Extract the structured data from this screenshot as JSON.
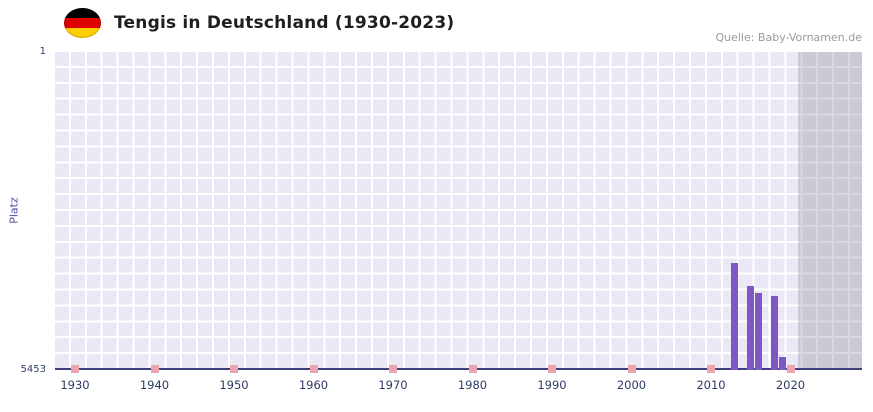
{
  "header": {
    "title": "Tengis in Deutschland (1930-2023)",
    "source": "Quelle: Baby-Vornamen.de",
    "flag_icon": "german-flag-icon",
    "flag_colors": [
      "#000000",
      "#dd0000",
      "#ffce00"
    ]
  },
  "chart_data": {
    "type": "bar",
    "title": "Tengis in Deutschland (1930-2023)",
    "xlabel": "",
    "ylabel": "Platz",
    "y_axis": {
      "top_label": "1",
      "bottom_label": "5453",
      "min": 1,
      "max": 5453,
      "inverted": true
    },
    "x_range": [
      1930,
      2023
    ],
    "x_ticks": [
      1930,
      1940,
      1950,
      1960,
      1970,
      1980,
      1990,
      2000,
      2010,
      2020
    ],
    "series": [
      {
        "name": "Platz",
        "points": [
          {
            "year": 2013,
            "rank": 3620
          },
          {
            "year": 2015,
            "rank": 4010
          },
          {
            "year": 2016,
            "rank": 4130
          },
          {
            "year": 2018,
            "rank": 4180
          },
          {
            "year": 2019,
            "rank": 5230
          }
        ]
      }
    ],
    "no_data_tick_years": [
      1930,
      1940,
      1950,
      1960,
      1970,
      1980,
      1990,
      2000,
      2010,
      2020
    ],
    "bar_color": "#7e57c2",
    "plot_bg": "#ebe8f5",
    "tick_color": "#eda4ae",
    "recent_band": {
      "from_year": 2021,
      "overlay_color": "rgba(128,128,142,0.30)"
    },
    "grid": true,
    "legend": "none"
  }
}
